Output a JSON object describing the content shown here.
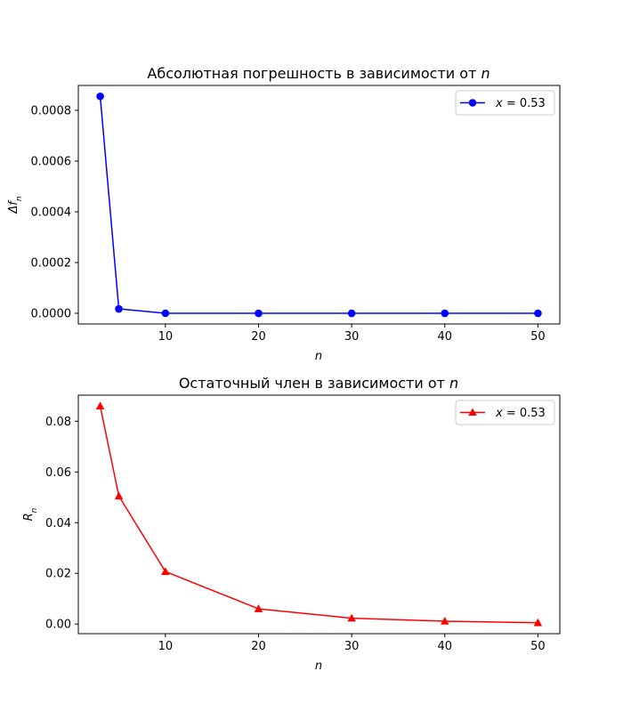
{
  "chart_data": [
    {
      "type": "line",
      "title_prefix": "Абсолютная погрешность в зависимости от ",
      "title_var": "n",
      "xlabel": "n",
      "ylabel_main": "Δf",
      "ylabel_sub": "n",
      "x": [
        3,
        5,
        10,
        20,
        30,
        40,
        50
      ],
      "series": [
        {
          "legend_var": "x",
          "legend_rest": " = 0.53",
          "values": [
            0.000855,
            1.75e-05,
            1e-07,
            0.0,
            0.0,
            0.0,
            0.0
          ],
          "color": "#0000ff",
          "marker": "circle"
        }
      ],
      "xlim": [
        0.65,
        52.35
      ],
      "ylim": [
        -4.2e-05,
        0.000898
      ],
      "xticks": [
        10,
        20,
        30,
        40,
        50
      ],
      "xtick_labels": [
        "10",
        "20",
        "30",
        "40",
        "50"
      ],
      "yticks": [
        0,
        0.0002,
        0.0004,
        0.0006,
        0.0008
      ],
      "ytick_labels": [
        "0.0000",
        "0.0002",
        "0.0004",
        "0.0006",
        "0.0008"
      ],
      "legend": "upper-right",
      "grid": false
    },
    {
      "type": "line",
      "title_prefix": "Остаточный член в зависимости от ",
      "title_var": "n",
      "xlabel": "n",
      "ylabel_main": "R",
      "ylabel_sub": "n",
      "x": [
        3,
        5,
        10,
        20,
        30,
        40,
        50
      ],
      "series": [
        {
          "legend_var": "x",
          "legend_rest": " = 0.53",
          "values": [
            0.086,
            0.0505,
            0.0207,
            0.006,
            0.0023,
            0.0011,
            0.0005
          ],
          "color": "#ff0000",
          "marker": "triangle"
        }
      ],
      "xlim": [
        0.65,
        52.35
      ],
      "ylim": [
        -0.0038,
        0.0903
      ],
      "xticks": [
        10,
        20,
        30,
        40,
        50
      ],
      "xtick_labels": [
        "10",
        "20",
        "30",
        "40",
        "50"
      ],
      "yticks": [
        0,
        0.02,
        0.04,
        0.06,
        0.08
      ],
      "ytick_labels": [
        "0.00",
        "0.02",
        "0.04",
        "0.06",
        "0.08"
      ],
      "legend": "upper-right",
      "grid": false
    }
  ]
}
